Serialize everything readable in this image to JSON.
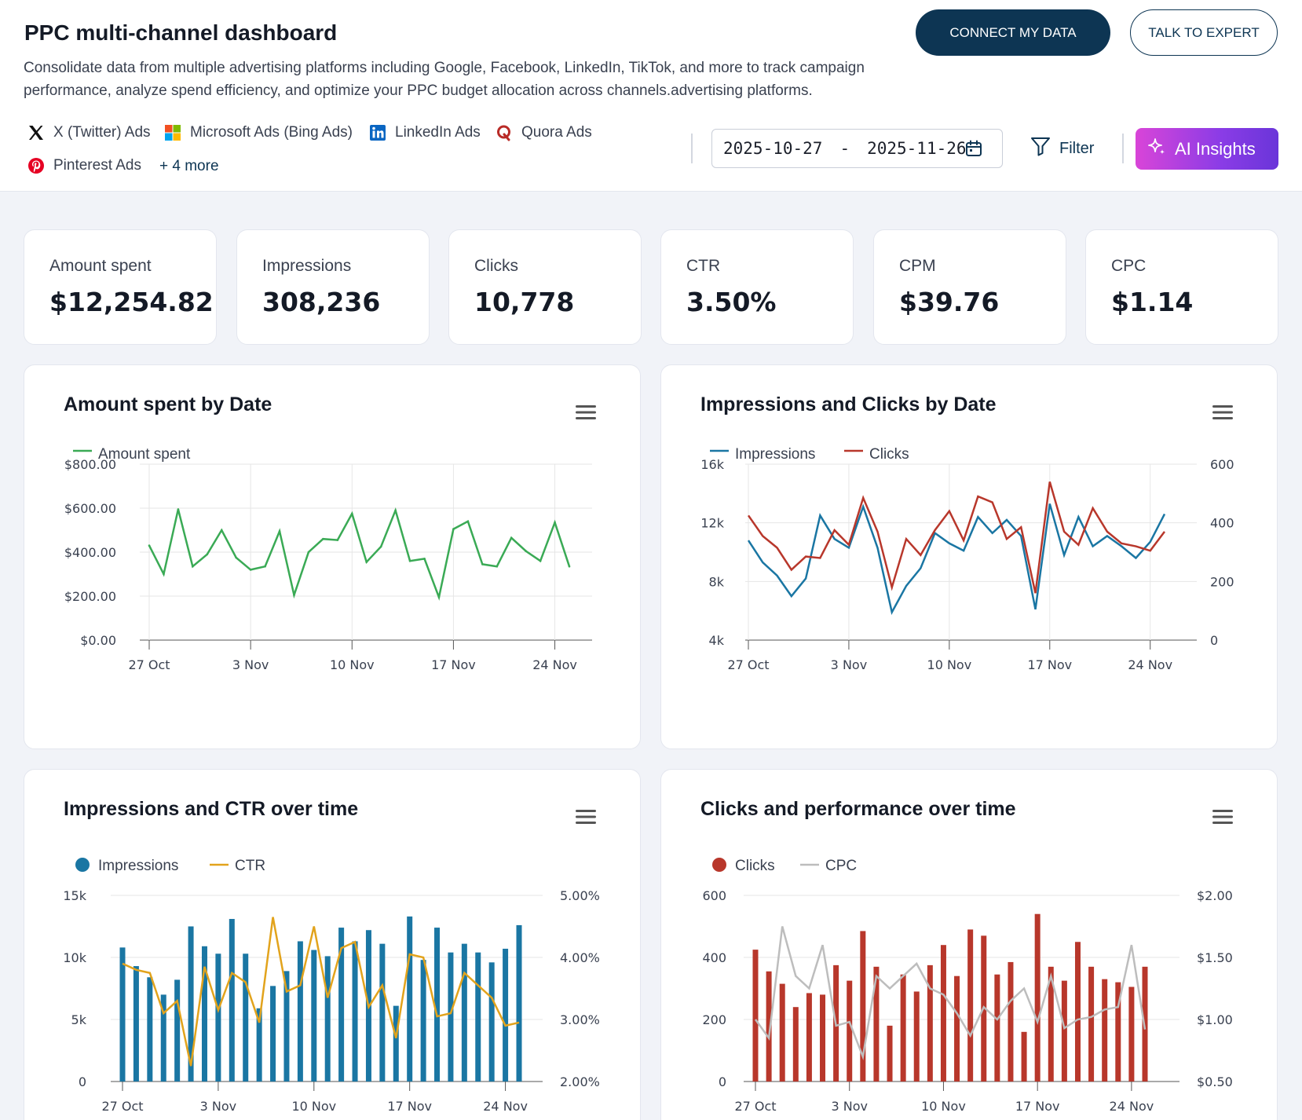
{
  "header": {
    "title": "PPC multi-channel dashboard",
    "description": "Consolidate data from multiple advertising platforms including Google, Facebook, LinkedIn, TikTok, and more to track campaign performance, analyze spend efficiency, and optimize your PPC budget allocation across channels.advertising platforms.",
    "connect_label": "CONNECT MY DATA",
    "expert_label": "TALK TO EXPERT"
  },
  "sources": {
    "items": [
      {
        "label": "X (Twitter) Ads",
        "icon": "x-twitter-icon"
      },
      {
        "label": "Microsoft Ads (Bing Ads)",
        "icon": "microsoft-icon"
      },
      {
        "label": "LinkedIn Ads",
        "icon": "linkedin-icon"
      },
      {
        "label": "Quora Ads",
        "icon": "quora-icon"
      },
      {
        "label": "Pinterest Ads",
        "icon": "pinterest-icon"
      }
    ],
    "more_label": "+ 4 more"
  },
  "toolbar": {
    "date_start": "2025-10-27",
    "date_sep": "-",
    "date_end": "2025-11-26",
    "filter_label": "Filter",
    "ai_label": "AI Insights"
  },
  "kpis": [
    {
      "label": "Amount spent",
      "value": "$12,254.82"
    },
    {
      "label": "Impressions",
      "value": "308,236"
    },
    {
      "label": "Clicks",
      "value": "10,778"
    },
    {
      "label": "CTR",
      "value": "3.50%"
    },
    {
      "label": "CPM",
      "value": "$39.76"
    },
    {
      "label": "CPC",
      "value": "$1.14"
    }
  ],
  "colors": {
    "amount": "#3aaa55",
    "impressions": "#1a76a3",
    "clicks": "#b8372b",
    "ctr": "#e2a31c",
    "cpc": "#bdbdbd",
    "brand": "#0d3553"
  },
  "chart_data": [
    {
      "type": "line",
      "title": "Amount spent by Date",
      "x_ticks": [
        "27 Oct",
        "3 Nov",
        "10 Nov",
        "17 Nov",
        "24 Nov"
      ],
      "y_ticks": [
        "$800.00",
        "$600.00",
        "$400.00",
        "$200.00",
        "$0.00"
      ],
      "ylim": [
        0,
        800
      ],
      "legend": [
        "Amount spent"
      ],
      "series": [
        {
          "name": "Amount spent",
          "values": [
            430,
            300,
            595,
            335,
            390,
            500,
            375,
            320,
            335,
            495,
            205,
            400,
            460,
            455,
            575,
            355,
            425,
            590,
            360,
            370,
            195,
            505,
            540,
            345,
            335,
            465,
            405,
            360,
            535,
            335
          ]
        }
      ]
    },
    {
      "type": "line",
      "title": "Impressions and Clicks by Date",
      "x_ticks": [
        "27 Oct",
        "3 Nov",
        "10 Nov",
        "17 Nov",
        "24 Nov"
      ],
      "y_ticks_left": [
        "16k",
        "12k",
        "8k",
        "4k"
      ],
      "y_ticks_right": [
        "600",
        "400",
        "200",
        "0"
      ],
      "ylim_left": [
        4000,
        16000
      ],
      "ylim_right": [
        0,
        600
      ],
      "legend": [
        "Impressions",
        "Clicks"
      ],
      "series": [
        {
          "name": "Impressions",
          "axis": "left",
          "values": [
            10800,
            9300,
            8400,
            7000,
            8200,
            12500,
            10900,
            10300,
            13100,
            10300,
            5900,
            7700,
            8900,
            11300,
            10600,
            10100,
            12400,
            11300,
            12200,
            11100,
            6100,
            13300,
            9800,
            12400,
            10400,
            11100,
            10400,
            9600,
            10700,
            12600
          ]
        },
        {
          "name": "Clicks",
          "axis": "left_scaled",
          "values": [
            425,
            355,
            315,
            240,
            285,
            280,
            375,
            325,
            485,
            370,
            180,
            345,
            290,
            375,
            440,
            340,
            490,
            470,
            345,
            385,
            160,
            540,
            370,
            325,
            450,
            370,
            330,
            320,
            305,
            370
          ]
        }
      ]
    },
    {
      "type": "bar",
      "title": "Impressions and CTR over time",
      "x_ticks": [
        "27 Oct",
        "3 Nov",
        "10 Nov",
        "17 Nov",
        "24 Nov"
      ],
      "y_ticks_left": [
        "15k",
        "10k",
        "5k",
        "0"
      ],
      "y_ticks_right": [
        "5.00%",
        "4.00%",
        "3.00%",
        "2.00%"
      ],
      "ylim_left": [
        0,
        15000
      ],
      "ylim_right": [
        2.0,
        5.0
      ],
      "legend": [
        "Impressions",
        "CTR"
      ],
      "series": [
        {
          "name": "Impressions",
          "type": "bar",
          "values": [
            10800,
            9300,
            8400,
            7000,
            8200,
            12500,
            10900,
            10300,
            13100,
            10300,
            5900,
            7700,
            8900,
            11300,
            10600,
            10100,
            12400,
            11300,
            12200,
            11100,
            6100,
            13300,
            9800,
            12400,
            10400,
            11100,
            10400,
            9600,
            10700,
            12600
          ]
        },
        {
          "name": "CTR",
          "type": "line",
          "values": [
            3.9,
            3.8,
            3.75,
            3.1,
            3.3,
            2.25,
            3.85,
            3.15,
            3.75,
            3.6,
            2.95,
            4.65,
            3.45,
            3.55,
            4.5,
            3.35,
            4.15,
            4.25,
            3.2,
            3.55,
            2.7,
            4.05,
            4.0,
            3.05,
            3.1,
            3.75,
            3.55,
            3.35,
            2.9,
            2.95
          ]
        }
      ]
    },
    {
      "type": "bar",
      "title": "Clicks and performance over time",
      "x_ticks": [
        "27 Oct",
        "3 Nov",
        "10 Nov",
        "17 Nov",
        "24 Nov"
      ],
      "y_ticks_left": [
        "600",
        "400",
        "200",
        "0"
      ],
      "y_ticks_right": [
        "$2.00",
        "$1.50",
        "$1.00",
        "$0.50"
      ],
      "ylim_left": [
        0,
        600
      ],
      "ylim_right": [
        0.5,
        2.0
      ],
      "legend": [
        "Clicks",
        "CPC"
      ],
      "series": [
        {
          "name": "Clicks",
          "type": "bar",
          "values": [
            425,
            355,
            315,
            240,
            285,
            280,
            375,
            325,
            485,
            370,
            180,
            345,
            290,
            375,
            440,
            340,
            490,
            470,
            345,
            385,
            160,
            540,
            370,
            325,
            450,
            370,
            330,
            320,
            305,
            370
          ]
        },
        {
          "name": "CPC",
          "type": "line",
          "values": [
            1.0,
            0.85,
            1.75,
            1.35,
            1.25,
            1.6,
            0.95,
            0.98,
            0.7,
            1.35,
            1.25,
            1.35,
            1.45,
            1.25,
            1.2,
            1.05,
            0.87,
            1.1,
            1.0,
            1.15,
            1.25,
            0.98,
            1.35,
            0.93,
            1.0,
            1.02,
            1.08,
            1.1,
            1.6,
            0.92
          ]
        }
      ]
    }
  ]
}
